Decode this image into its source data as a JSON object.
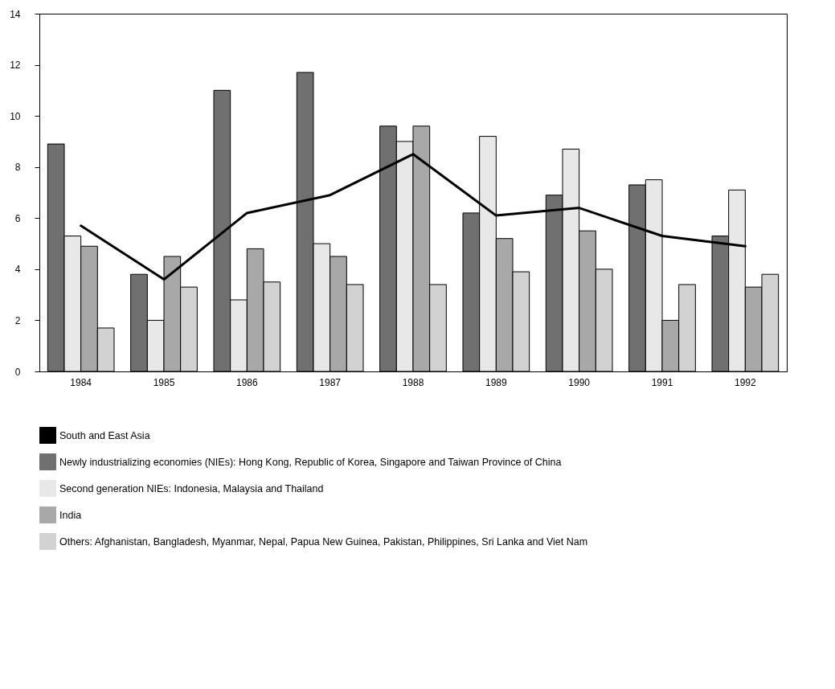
{
  "chart_data": {
    "type": "bar",
    "categories": [
      "1984",
      "1985",
      "1986",
      "1987",
      "1988",
      "1989",
      "1990",
      "1991",
      "1992"
    ],
    "series": [
      {
        "name": "South and East Asia",
        "type": "line",
        "color": "#000000",
        "values": [
          5.7,
          3.6,
          6.2,
          6.9,
          8.5,
          6.1,
          6.4,
          5.3,
          4.9
        ]
      },
      {
        "name": "Newly industrializing economies (NIEs): Hong Kong, Republic of Korea, Singapore and Taiwan Province of China",
        "color": "#707070",
        "values": [
          8.9,
          3.8,
          11.0,
          11.7,
          9.6,
          6.2,
          6.9,
          7.3,
          5.3
        ]
      },
      {
        "name": "Second generation NIEs: Indonesia, Malaysia and Thailand",
        "color": "#e8e8e8",
        "values": [
          5.3,
          2.0,
          2.8,
          5.0,
          9.0,
          9.2,
          8.7,
          7.5,
          7.1
        ]
      },
      {
        "name": "India",
        "color": "#a8a8a8",
        "values": [
          4.9,
          4.5,
          4.8,
          4.5,
          9.6,
          5.2,
          5.5,
          2.0,
          3.3
        ]
      },
      {
        "name": "Others: Afghanistan, Bangladesh, Myanmar, Nepal, Papua New Guinea, Pakistan, Philippines, Sri Lanka and Viet Nam",
        "color": "#d2d2d2",
        "values": [
          1.7,
          3.3,
          3.5,
          3.4,
          3.4,
          3.9,
          4.0,
          3.4,
          3.8
        ]
      }
    ],
    "ylim": [
      0,
      14
    ],
    "yticks": [
      0,
      2,
      4,
      6,
      8,
      10,
      12,
      14
    ],
    "grid": false,
    "legend": "bottom"
  }
}
